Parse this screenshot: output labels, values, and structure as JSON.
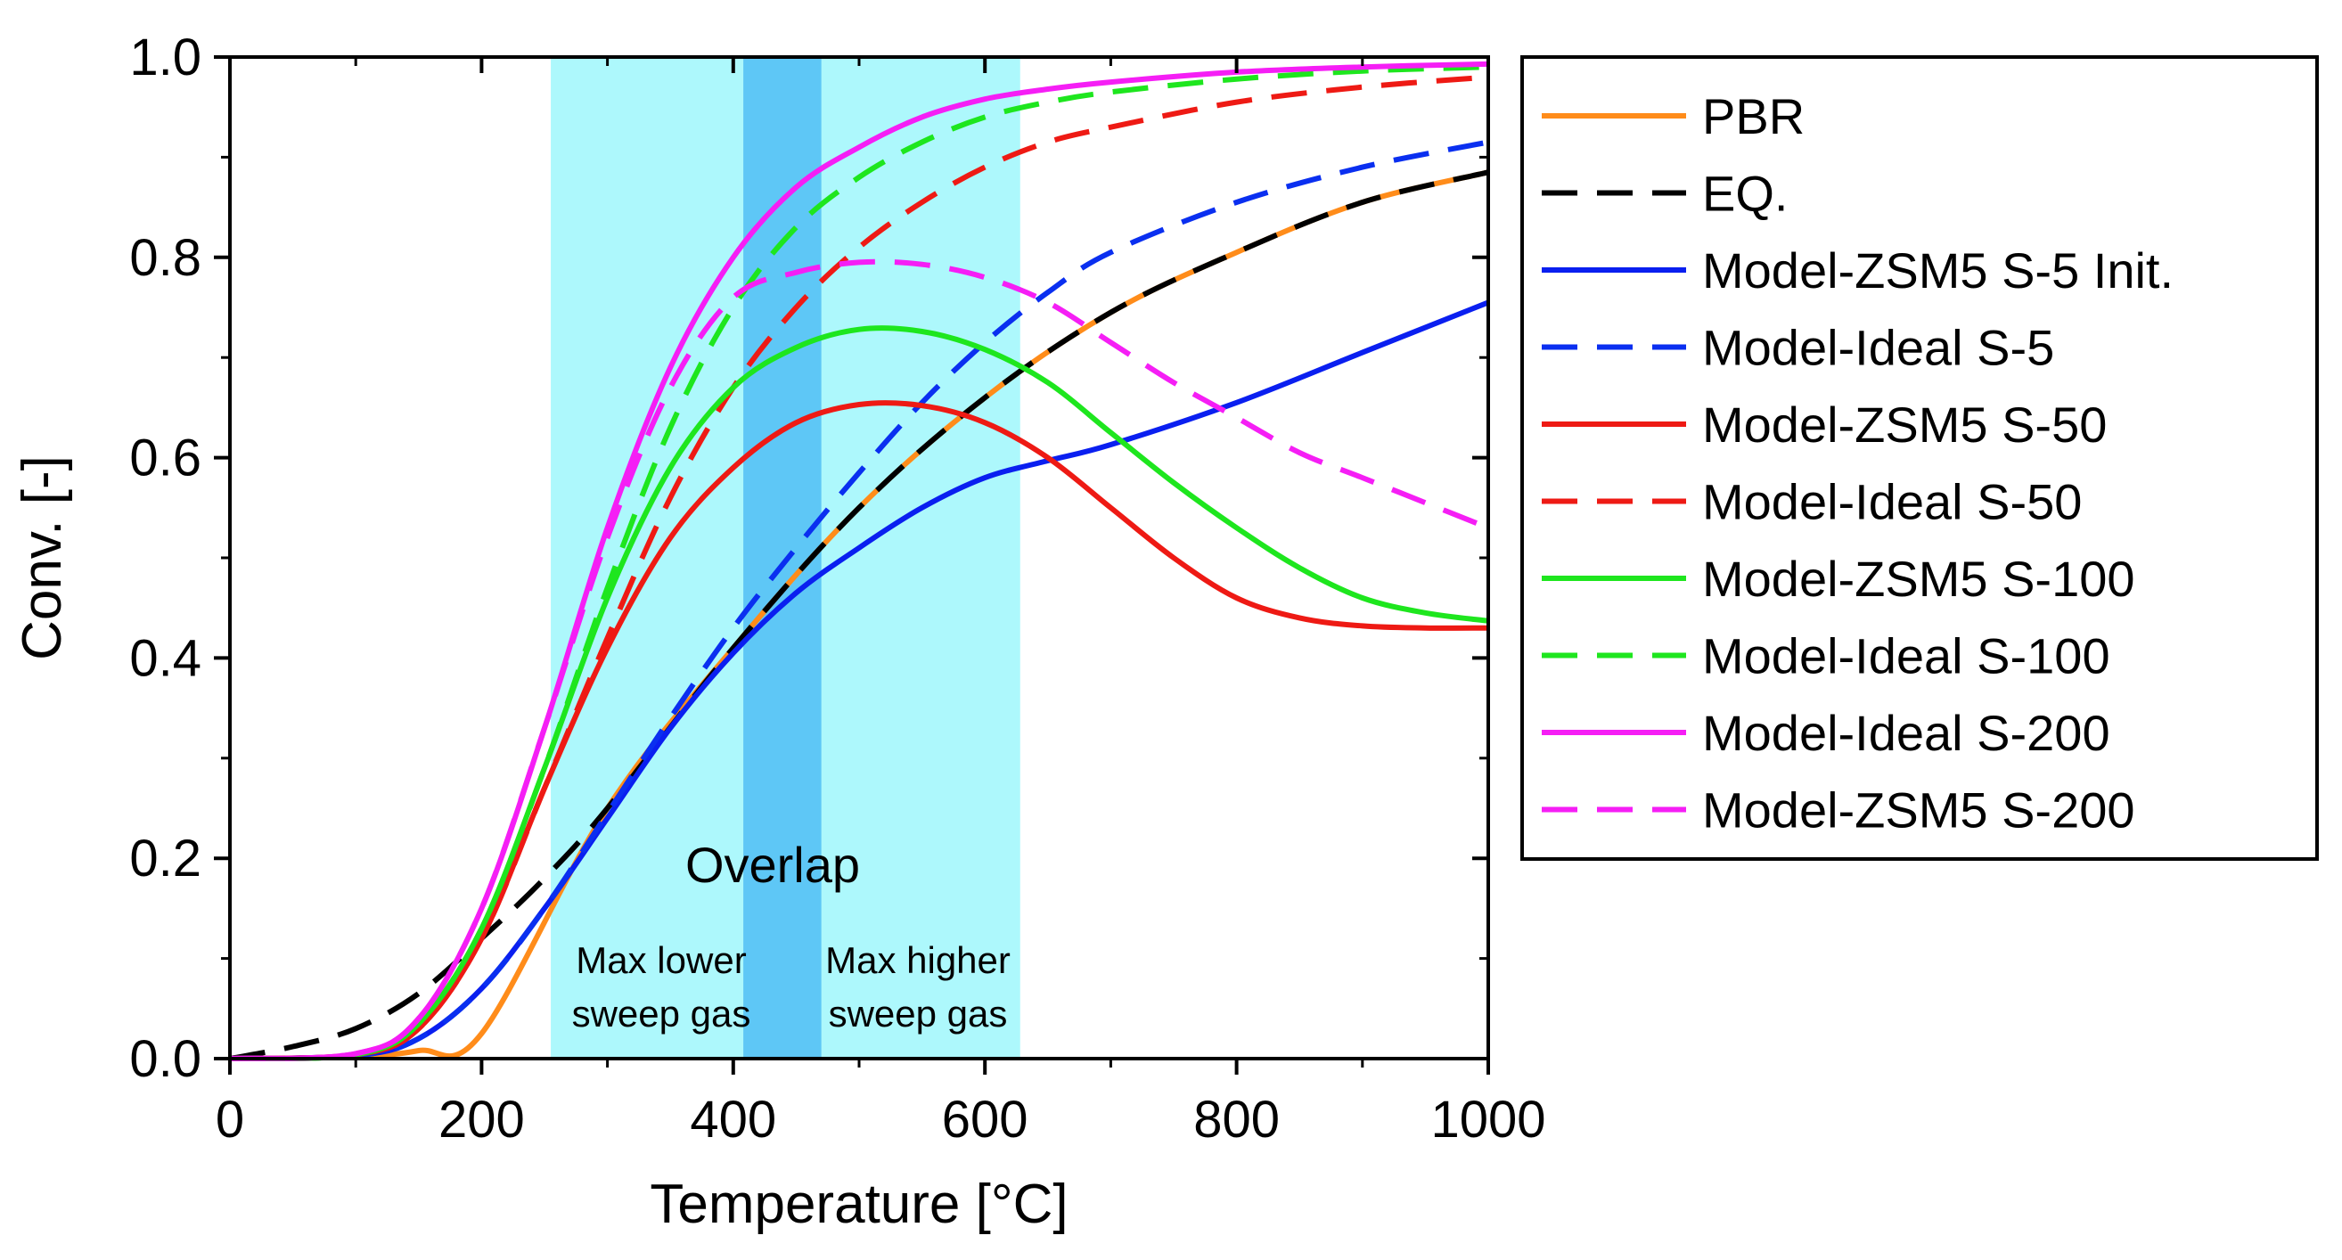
{
  "chart_data": {
    "type": "line",
    "title": "",
    "xlabel": "Temperature [°C]",
    "ylabel": "Conv. [-]",
    "xlim": [
      0,
      1000
    ],
    "ylim": [
      0,
      1.0
    ],
    "x_ticks": [
      0,
      200,
      400,
      600,
      800,
      1000
    ],
    "x_tick_labels": [
      "0",
      "200",
      "400",
      "600",
      "800",
      "1000"
    ],
    "y_ticks": [
      0,
      0.2,
      0.4,
      0.6,
      0.8,
      1.0
    ],
    "y_tick_labels": [
      "0.0",
      "0.2",
      "0.4",
      "0.6",
      "0.8",
      "1.0"
    ],
    "legend_position": "outside-right",
    "regions": [
      {
        "name": "max-lower-sweep",
        "x_range": [
          255,
          470
        ],
        "color": "#adf8fc",
        "label": "Max lower\nsweep gas"
      },
      {
        "name": "max-higher-sweep",
        "x_range": [
          408,
          628
        ],
        "color": "#adf8fc",
        "label": "Max higher\nsweep gas"
      },
      {
        "name": "overlap",
        "x_range": [
          408,
          470
        ],
        "color": "#5ec7f6",
        "label": "Overlap"
      }
    ],
    "annotations": {
      "overlap": "Overlap",
      "lower_line1": "Max lower",
      "lower_line2": "sweep gas",
      "higher_line1": "Max higher",
      "higher_line2": "sweep gas"
    },
    "series": [
      {
        "name": "PBR",
        "color": "#ff8c1a",
        "dash": "solid",
        "x": [
          0,
          100,
          150,
          200,
          300,
          400,
          500,
          600,
          700,
          800,
          900,
          1000
        ],
        "values": [
          0.0,
          0.002,
          0.008,
          0.025,
          0.25,
          0.41,
          0.55,
          0.66,
          0.745,
          0.805,
          0.855,
          0.885
        ]
      },
      {
        "name": "EQ.",
        "color": "#000000",
        "dash": "dash",
        "x": [
          0,
          50,
          100,
          150,
          200,
          250,
          300,
          400,
          500,
          600,
          700,
          800,
          900,
          1000
        ],
        "values": [
          0.0,
          0.012,
          0.03,
          0.065,
          0.12,
          0.18,
          0.25,
          0.41,
          0.55,
          0.66,
          0.745,
          0.805,
          0.855,
          0.885
        ]
      },
      {
        "name": "Model-ZSM5 S-5 Init.",
        "color": "#0a1ff0",
        "dash": "solid",
        "x": [
          0,
          100,
          150,
          200,
          250,
          300,
          350,
          400,
          450,
          500,
          550,
          600,
          650,
          700,
          800,
          900,
          1000
        ],
        "values": [
          0.0,
          0.003,
          0.02,
          0.07,
          0.15,
          0.24,
          0.33,
          0.405,
          0.465,
          0.51,
          0.55,
          0.58,
          0.597,
          0.613,
          0.655,
          0.705,
          0.755
        ]
      },
      {
        "name": "Model-Ideal S-5",
        "color": "#0a2ff0",
        "dash": "dash",
        "x": [
          0,
          100,
          150,
          200,
          250,
          300,
          350,
          400,
          450,
          500,
          550,
          600,
          650,
          700,
          800,
          900,
          1000
        ],
        "values": [
          0.0,
          0.003,
          0.02,
          0.07,
          0.15,
          0.245,
          0.34,
          0.43,
          0.51,
          0.585,
          0.655,
          0.715,
          0.765,
          0.805,
          0.855,
          0.89,
          0.915
        ]
      },
      {
        "name": "Model-ZSM5 S-50",
        "color": "#ee1a14",
        "dash": "solid",
        "x": [
          0,
          100,
          150,
          200,
          250,
          300,
          350,
          400,
          450,
          500,
          550,
          600,
          650,
          700,
          750,
          800,
          850,
          900,
          950,
          1000
        ],
        "values": [
          0.0,
          0.004,
          0.03,
          0.12,
          0.27,
          0.41,
          0.52,
          0.59,
          0.635,
          0.653,
          0.652,
          0.635,
          0.6,
          0.55,
          0.5,
          0.46,
          0.44,
          0.432,
          0.43,
          0.43
        ]
      },
      {
        "name": "Model-Ideal S-50",
        "color": "#ee1a14",
        "dash": "dash",
        "x": [
          0,
          100,
          150,
          200,
          250,
          300,
          350,
          400,
          450,
          500,
          550,
          600,
          650,
          700,
          800,
          900,
          1000
        ],
        "values": [
          0.0,
          0.004,
          0.03,
          0.12,
          0.27,
          0.42,
          0.56,
          0.67,
          0.75,
          0.81,
          0.855,
          0.89,
          0.915,
          0.93,
          0.955,
          0.97,
          0.98
        ]
      },
      {
        "name": "Model-ZSM5 S-100",
        "color": "#1ee61e",
        "dash": "solid",
        "x": [
          0,
          100,
          150,
          200,
          250,
          300,
          350,
          400,
          450,
          500,
          550,
          600,
          650,
          700,
          750,
          800,
          850,
          900,
          950,
          1000
        ],
        "values": [
          0.0,
          0.004,
          0.035,
          0.13,
          0.29,
          0.46,
          0.59,
          0.67,
          0.71,
          0.728,
          0.726,
          0.708,
          0.675,
          0.625,
          0.575,
          0.53,
          0.49,
          0.46,
          0.445,
          0.437
        ]
      },
      {
        "name": "Model-Ideal S-100",
        "color": "#1ee61e",
        "dash": "dash",
        "x": [
          0,
          100,
          150,
          200,
          250,
          300,
          350,
          400,
          450,
          500,
          550,
          600,
          650,
          700,
          800,
          900,
          1000
        ],
        "values": [
          0.0,
          0.004,
          0.035,
          0.13,
          0.29,
          0.47,
          0.63,
          0.75,
          0.83,
          0.88,
          0.915,
          0.94,
          0.955,
          0.965,
          0.978,
          0.986,
          0.99
        ]
      },
      {
        "name": "Model-Ideal S-200",
        "color": "#f51ef5",
        "dash": "solid",
        "x": [
          0,
          100,
          150,
          200,
          250,
          300,
          350,
          400,
          450,
          500,
          550,
          600,
          650,
          700,
          800,
          900,
          1000
        ],
        "values": [
          0.0,
          0.005,
          0.04,
          0.15,
          0.33,
          0.53,
          0.69,
          0.8,
          0.87,
          0.91,
          0.94,
          0.958,
          0.968,
          0.975,
          0.985,
          0.99,
          0.993
        ]
      },
      {
        "name": "Model-ZSM5 S-200",
        "color": "#f51ef5",
        "dash": "dash",
        "x": [
          0,
          100,
          150,
          200,
          250,
          300,
          350,
          400,
          450,
          500,
          550,
          600,
          650,
          700,
          750,
          800,
          850,
          900,
          950,
          1000
        ],
        "values": [
          0.0,
          0.005,
          0.04,
          0.15,
          0.33,
          0.52,
          0.67,
          0.76,
          0.785,
          0.795,
          0.793,
          0.78,
          0.755,
          0.715,
          0.675,
          0.64,
          0.605,
          0.58,
          0.555,
          0.53
        ]
      }
    ]
  }
}
